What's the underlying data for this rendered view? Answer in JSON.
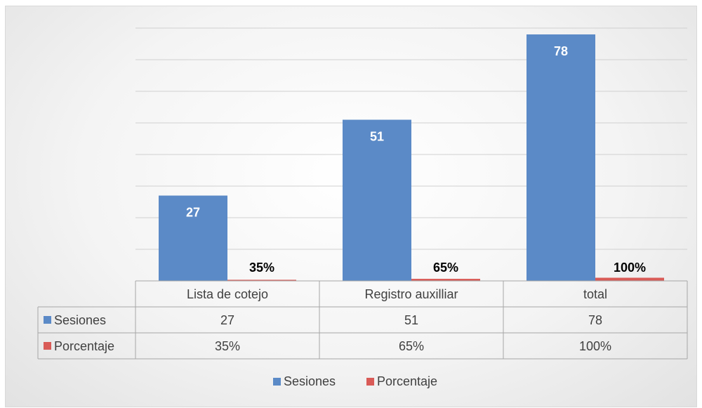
{
  "chart_data": {
    "type": "bar",
    "categories": [
      "Lista de cotejo",
      "Registro auxilliar",
      "total"
    ],
    "series": [
      {
        "name": "Sesiones",
        "values": [
          27,
          51,
          78
        ],
        "labels": [
          "27",
          "51",
          "78"
        ],
        "color": "#5b8ac7"
      },
      {
        "name": "Porcentaje",
        "values": [
          0.35,
          0.65,
          1.0
        ],
        "labels": [
          "35%",
          "65%",
          "100%"
        ],
        "color": "#d95b57"
      }
    ],
    "ylim": [
      0,
      80
    ],
    "grid": true,
    "legend": "bottom",
    "data_table": true
  }
}
